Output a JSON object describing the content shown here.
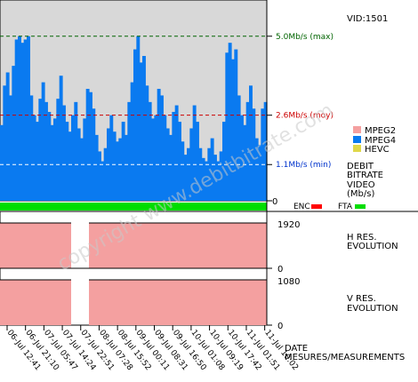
{
  "header": {
    "vid_label": "VID:1501"
  },
  "watermark": "copyright www.debitbitrate.com",
  "bitrate_panel": {
    "levels": [
      {
        "label": "5.0Mb/s (max)",
        "value": 5.0,
        "color": "#006400"
      },
      {
        "label": "2.6Mb/s (moy)",
        "value": 2.6,
        "color": "#cc0000"
      },
      {
        "label": "1.1Mb/s (min)",
        "value": 1.1,
        "color": "#0033cc"
      }
    ],
    "zero_label": "0",
    "legend": [
      {
        "label": "MPEG2",
        "color": "#f4a0a0"
      },
      {
        "label": "MPEG4",
        "color": "#0a7af0"
      },
      {
        "label": "HEVC",
        "color": "#e0d84a"
      }
    ],
    "title_lines": [
      "DEBIT",
      "BITRATE",
      "VIDEO",
      "(Mb/s)"
    ]
  },
  "enc_fta": {
    "enc_label": "ENC",
    "enc_color": "#ff0000",
    "fta_label": "FTA",
    "fta_color": "#00dd00"
  },
  "h_res_panel": {
    "value_label": "1920",
    "zero_label": "0",
    "title_lines": [
      "H RES.",
      "EVOLUTION"
    ],
    "fill_color": "#f4a0a0"
  },
  "v_res_panel": {
    "value_label": "1080",
    "zero_label": "0",
    "title_lines": [
      "V RES.",
      "EVOLUTION"
    ],
    "fill_color": "#f4a0a0"
  },
  "x_axis": {
    "ticks": [
      "06-Jul 12:41",
      "06-Jul 21:10",
      "07-Jul 05:47",
      "07-Jul 14:24",
      "07-Jul 22:51",
      "08-Jul 07:28",
      "08-Jul 15:52",
      "09-Jul 00:11",
      "09-Jul 08:31",
      "09-Jul 16:50",
      "10-Jul 01:08",
      "10-Jul 09:19",
      "10-Jul 17:42",
      "11-Jul 01:51",
      "11-Jul 10:02"
    ],
    "title_lines": [
      "DATE",
      "MESURES/MEASUREMENTS"
    ]
  },
  "chart_data": {
    "type": "area",
    "title": "",
    "ylabel": "DEBIT BITRATE VIDEO (Mb/s)",
    "xlabel": "DATE MESURES/MEASUREMENTS",
    "series": [
      {
        "name": "MPEG4",
        "values": [
          2.3,
          3.5,
          3.9,
          3.2,
          4.1,
          4.9,
          5.0,
          4.8,
          4.9,
          5.0,
          3.2,
          2.6,
          2.4,
          3.1,
          3.6,
          3.0,
          2.7,
          2.3,
          2.5,
          3.1,
          3.8,
          2.9,
          2.4,
          2.1,
          2.6,
          3.0,
          2.2,
          1.9,
          2.5,
          3.4,
          3.3,
          2.8,
          2.0,
          1.5,
          1.2,
          1.6,
          2.2,
          2.6,
          2.1,
          1.8,
          1.9,
          2.4,
          2.0,
          3.0,
          3.6,
          4.6,
          5.0,
          4.2,
          4.4,
          3.5,
          3.0,
          2.5,
          2.6,
          3.4,
          3.2,
          2.6,
          2.2,
          2.0,
          2.7,
          2.9,
          2.4,
          1.8,
          1.4,
          1.6,
          2.2,
          2.9,
          2.4,
          1.6,
          1.3,
          1.2,
          1.6,
          1.9,
          1.4,
          1.2,
          1.5,
          2.4,
          4.5,
          4.8,
          4.3,
          4.6,
          3.2,
          2.6,
          2.3,
          3.0,
          3.5,
          2.8,
          1.9,
          1.7,
          2.8,
          3.0
        ]
      }
    ],
    "ylim": [
      0,
      6.1
    ],
    "reference_lines": [
      5.0,
      2.6,
      1.1
    ],
    "h_res": {
      "ylim": [
        0,
        1920
      ],
      "segments": [
        {
          "value": 1920
        },
        {
          "value": 0,
          "gap": true
        },
        {
          "value": 1920
        }
      ]
    },
    "v_res": {
      "ylim": [
        0,
        1080
      ],
      "segments": [
        {
          "value": 1080
        },
        {
          "value": 0,
          "gap": true
        },
        {
          "value": 1080
        }
      ]
    },
    "grid": false
  }
}
